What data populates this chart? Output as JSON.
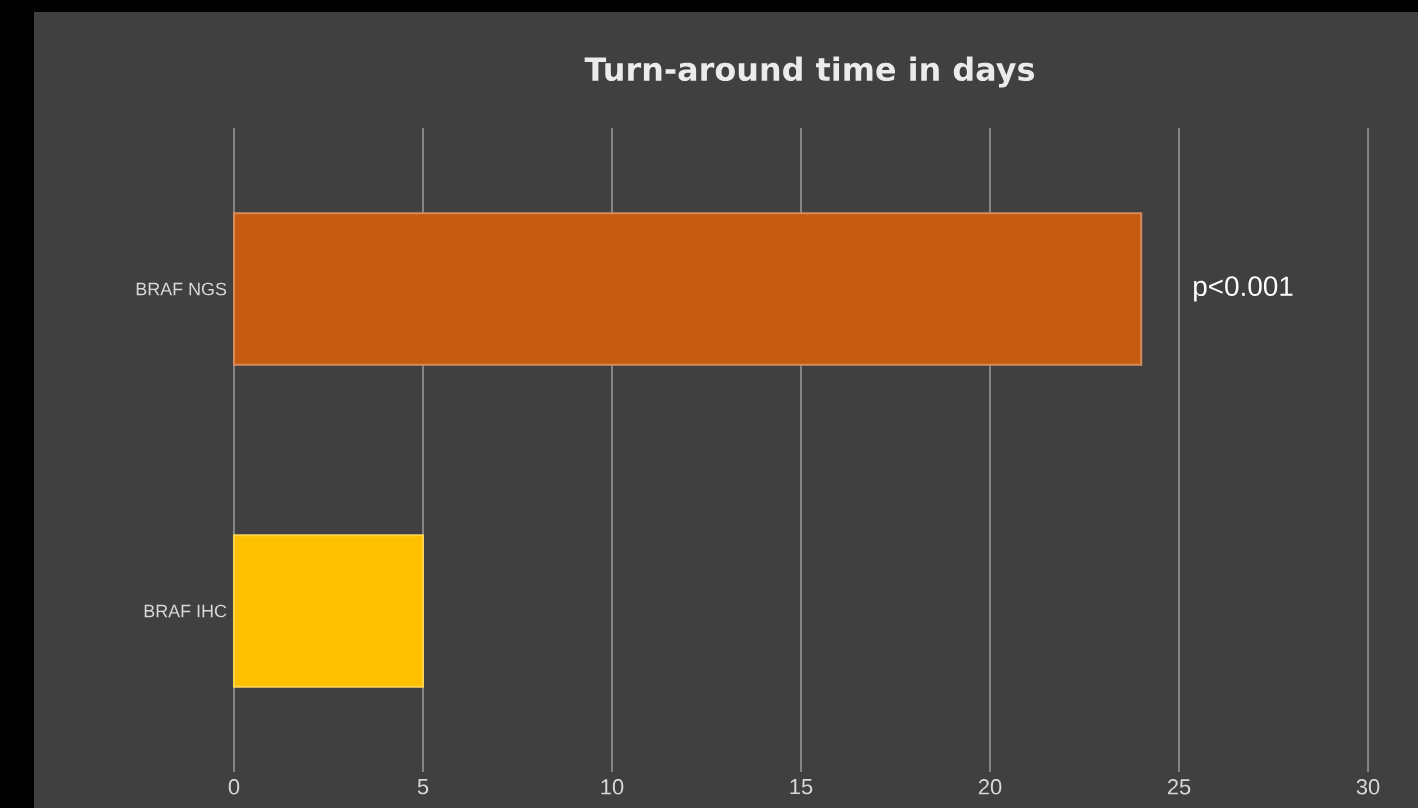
{
  "chart_data": {
    "type": "bar",
    "orientation": "horizontal",
    "title": "Turn-around time in days",
    "categories": [
      "BRAF NGS",
      "BRAF IHC"
    ],
    "values": [
      24,
      5
    ],
    "colors": [
      "#c55a11",
      "#ffc000"
    ],
    "xlim": [
      0,
      30
    ],
    "xticks": [
      0,
      5,
      10,
      15,
      20,
      25,
      30
    ],
    "grid": "x",
    "annotations": [
      {
        "text": "p<0.001",
        "x": 24,
        "y": "BRAF NGS"
      }
    ]
  }
}
